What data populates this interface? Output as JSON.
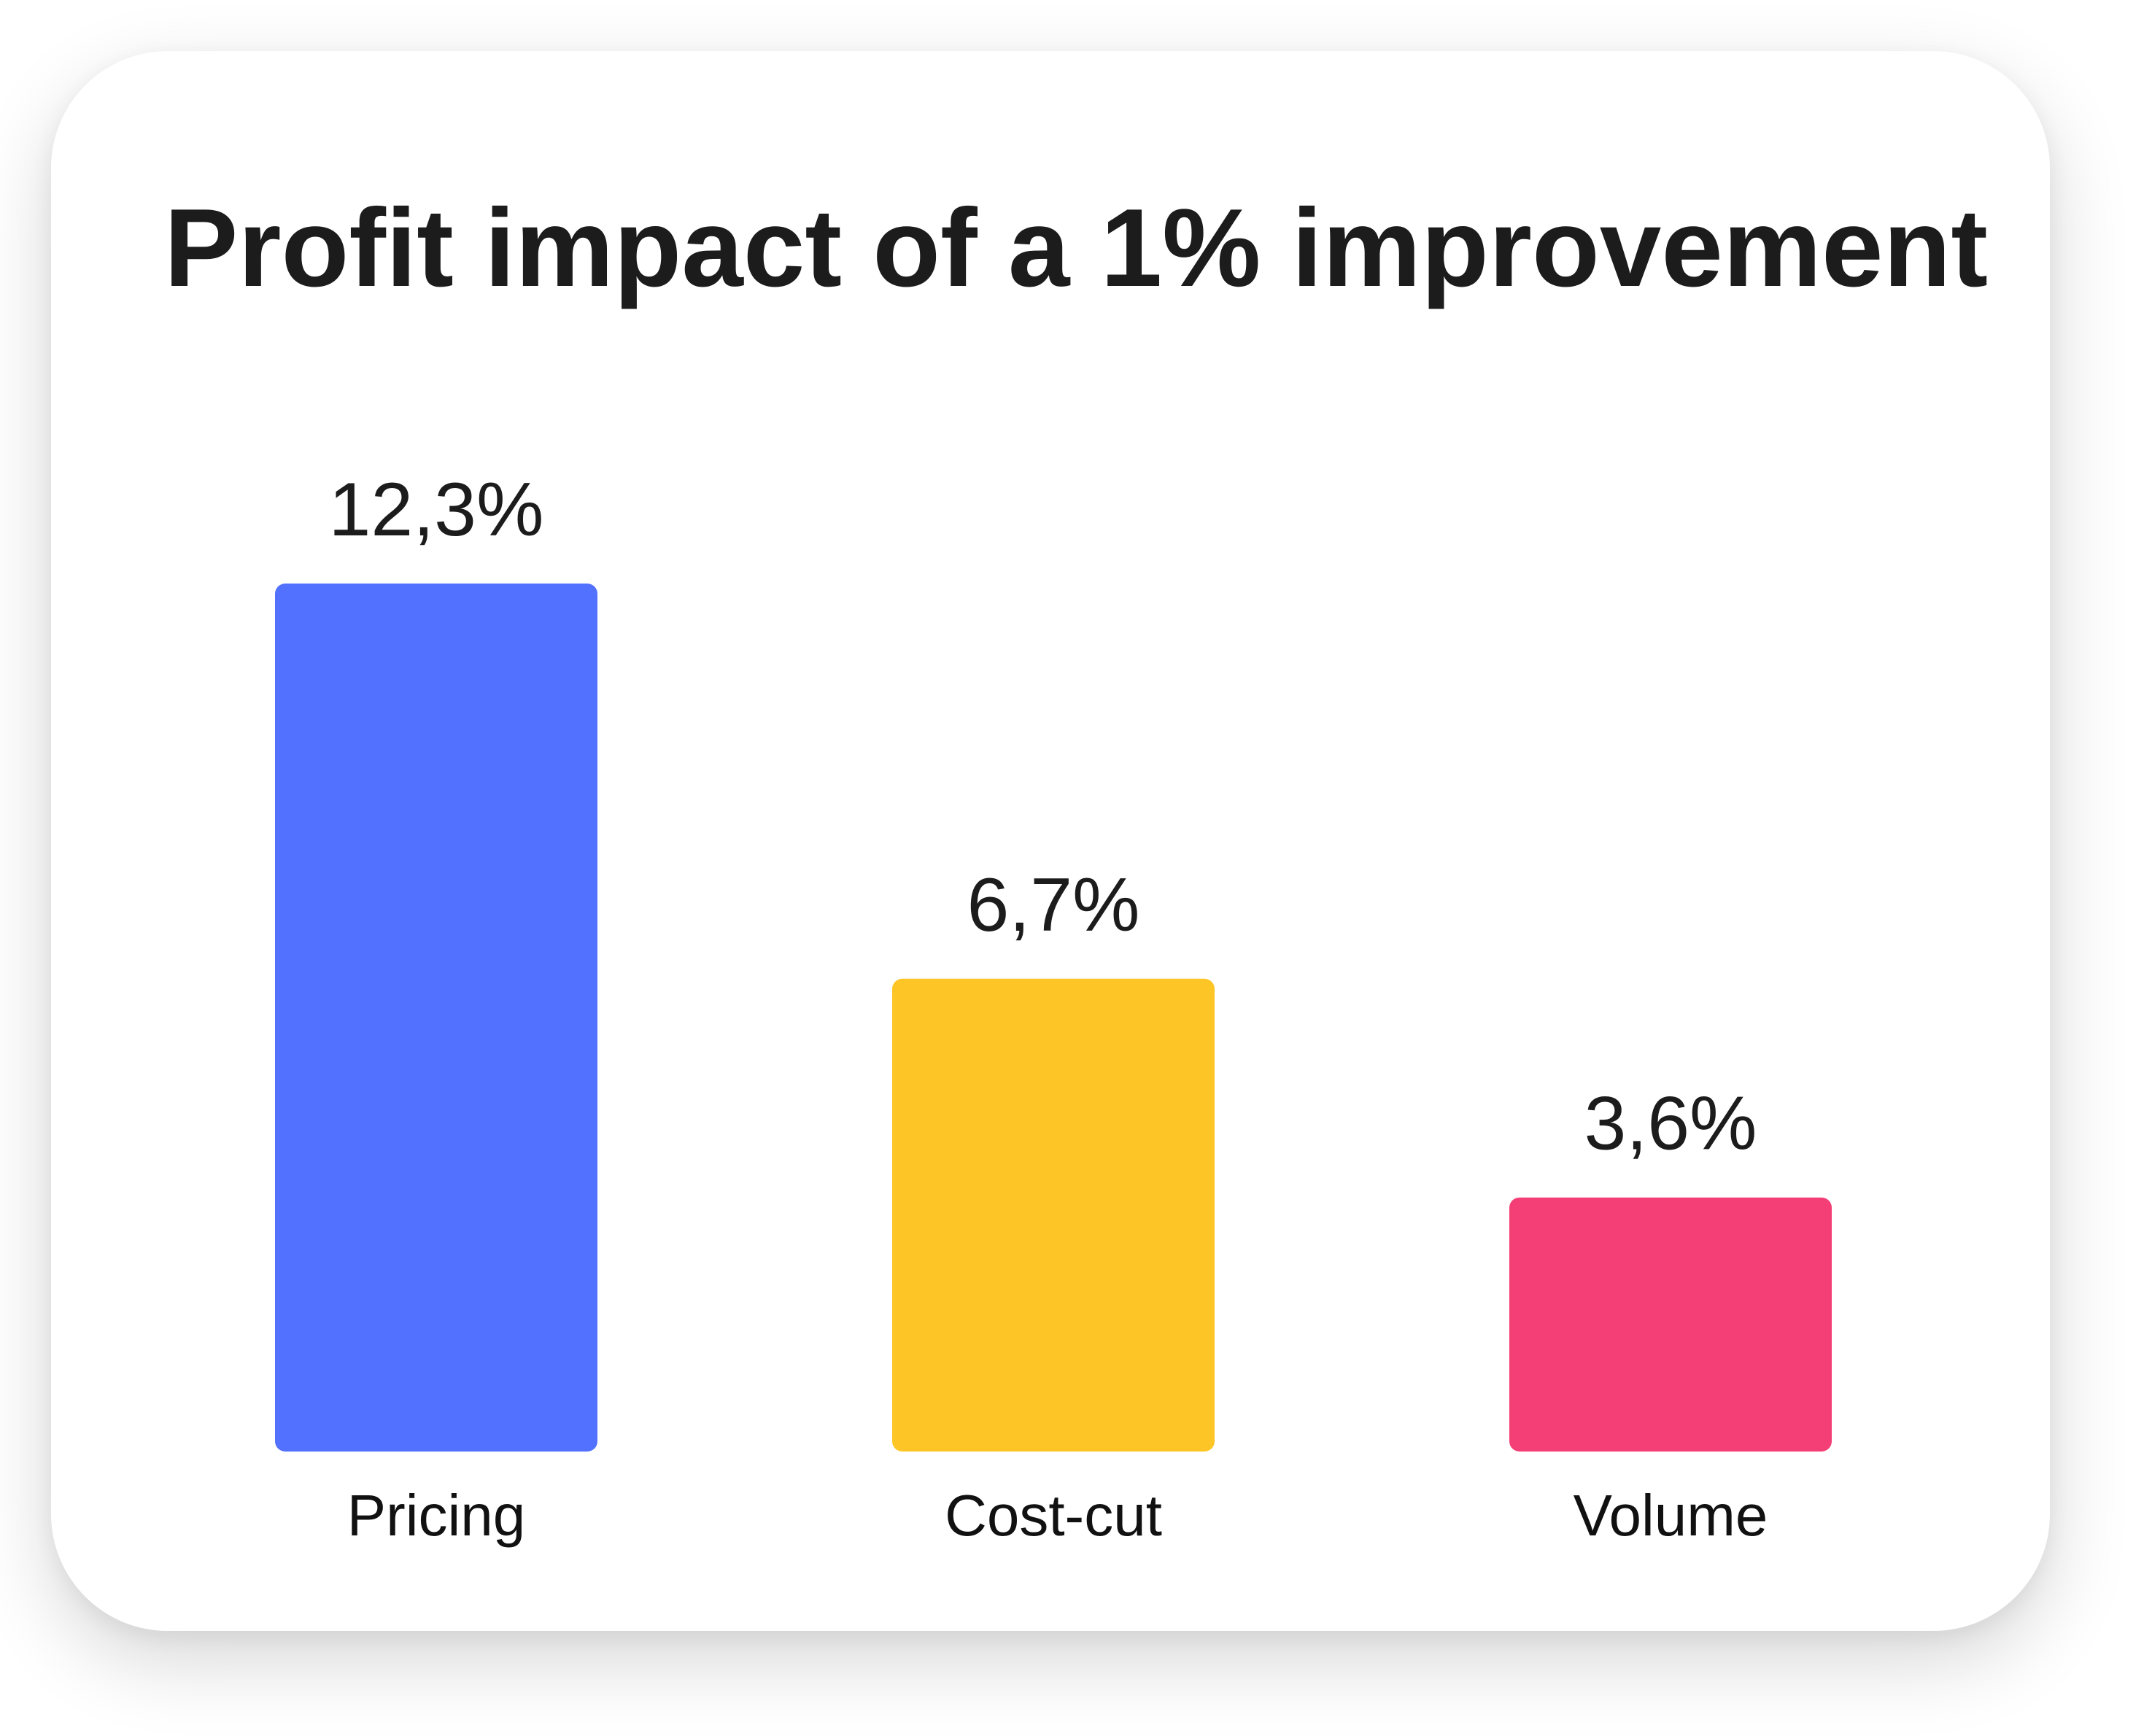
{
  "chart_data": {
    "type": "bar",
    "title": "Profit impact of a 1% improvement",
    "categories": [
      "Pricing",
      "Cost-cut",
      "Volume"
    ],
    "values": [
      12.3,
      6.7,
      3.6
    ],
    "value_labels": [
      "12,3%",
      "6,7%",
      "3,6%"
    ],
    "colors": [
      "#5271FF",
      "#FDC526",
      "#F43F76"
    ],
    "unit": "%",
    "ylim": [
      0,
      12.3
    ],
    "grid": false,
    "legend": "none"
  }
}
